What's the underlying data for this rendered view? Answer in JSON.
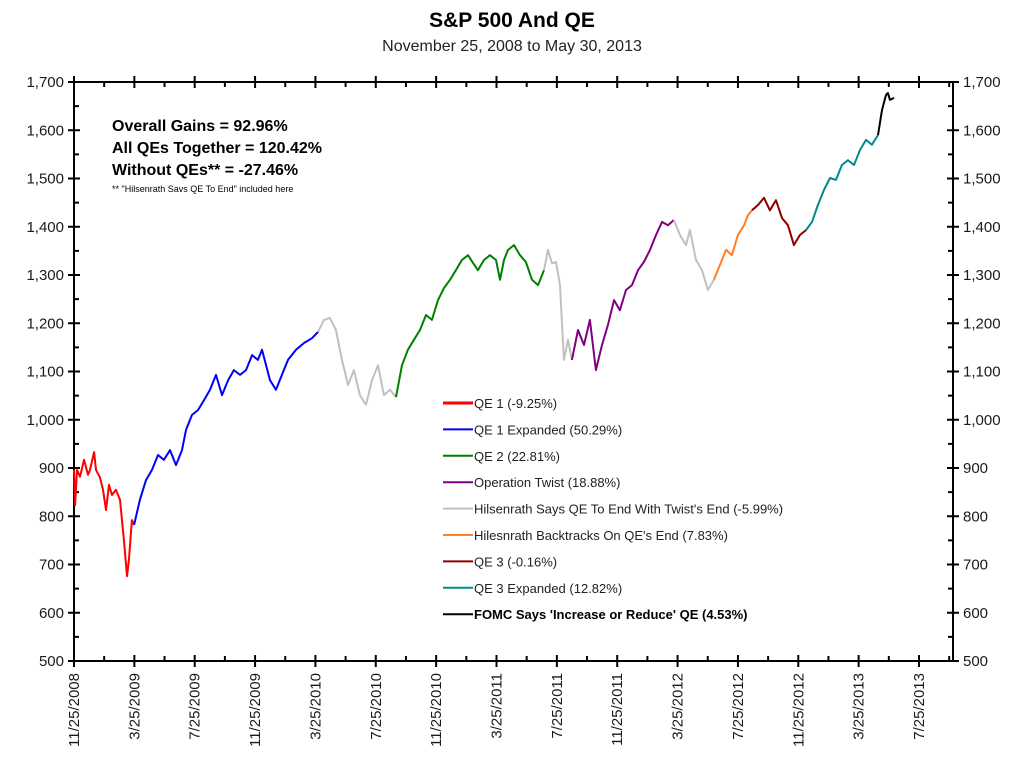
{
  "chart_data": {
    "type": "line",
    "title": "S&P 500 And QE",
    "subtitle": "November 25, 2008 to May 30, 2013",
    "xlabel": "",
    "ylabel": "",
    "x_units": "months since 11/25/2008",
    "xlim": [
      0,
      58.2
    ],
    "ylim": [
      500,
      1700
    ],
    "grid": false,
    "y_ticks": [
      500,
      600,
      700,
      800,
      900,
      1000,
      1100,
      1200,
      1300,
      1400,
      1500,
      1600,
      1700
    ],
    "y_tick_labels": [
      "500",
      "600",
      "700",
      "800",
      "900",
      "1,000",
      "1,100",
      "1,200",
      "1,300",
      "1,400",
      "1,500",
      "1,600",
      "1,700"
    ],
    "x_ticks": [
      0,
      4,
      8,
      12,
      16,
      20,
      24,
      28,
      32,
      36,
      40,
      44,
      48,
      52,
      56
    ],
    "x_tick_labels": [
      "11/25/2008",
      "3/25/2009",
      "7/25/2009",
      "11/25/2009",
      "3/25/2010",
      "7/25/2010",
      "11/25/2010",
      "3/25/2011",
      "7/25/2011",
      "11/25/2011",
      "3/25/2012",
      "7/25/2012",
      "11/25/2012",
      "3/25/2013",
      "7/25/2013"
    ],
    "annotations": [
      {
        "text": "Overall Gains = 92.96%",
        "style": "bold"
      },
      {
        "text": "All QEs Together = 120.42%",
        "style": "bold"
      },
      {
        "text": "Without QEs** = -27.46%",
        "style": "bold"
      },
      {
        "text": "** \"Hilsenrath Savs QE To End\" included here",
        "style": "footnote"
      }
    ],
    "legend_position": "center-bottom",
    "series": [
      {
        "name": "QE 1 (-9.25%)",
        "color": "#ff0000",
        "legend_bold": false,
        "in_legend": true,
        "points": [
          [
            0,
            896
          ],
          [
            0.07,
            823
          ],
          [
            0.2,
            896
          ],
          [
            0.4,
            882
          ],
          [
            0.66,
            917
          ],
          [
            0.93,
            886
          ],
          [
            1.06,
            896
          ],
          [
            1.33,
            933
          ],
          [
            1.46,
            896
          ],
          [
            1.72,
            880
          ],
          [
            1.92,
            855
          ],
          [
            2.12,
            813
          ],
          [
            2.32,
            865
          ],
          [
            2.52,
            844
          ],
          [
            2.78,
            855
          ],
          [
            3.05,
            834
          ],
          [
            3.31,
            751
          ],
          [
            3.51,
            676
          ],
          [
            3.64,
            709
          ],
          [
            3.84,
            792
          ],
          [
            3.98,
            782
          ]
        ]
      },
      {
        "name": "QE 1 Expanded (50.29%)",
        "color": "#0000ff",
        "legend_bold": false,
        "in_legend": true,
        "points": [
          [
            3.98,
            782
          ],
          [
            4.37,
            834
          ],
          [
            4.77,
            875
          ],
          [
            5.17,
            896
          ],
          [
            5.57,
            927
          ],
          [
            5.96,
            917
          ],
          [
            6.36,
            937
          ],
          [
            6.76,
            906
          ],
          [
            7.16,
            937
          ],
          [
            7.42,
            979
          ],
          [
            7.82,
            1010
          ],
          [
            8.22,
            1020
          ],
          [
            8.62,
            1041
          ],
          [
            9.01,
            1062
          ],
          [
            9.41,
            1093
          ],
          [
            9.81,
            1051
          ],
          [
            10.21,
            1082
          ],
          [
            10.6,
            1103
          ],
          [
            11.0,
            1093
          ],
          [
            11.4,
            1103
          ],
          [
            11.8,
            1134
          ],
          [
            12.19,
            1124
          ],
          [
            12.46,
            1145
          ],
          [
            12.99,
            1082
          ],
          [
            13.39,
            1062
          ],
          [
            13.78,
            1093
          ],
          [
            14.18,
            1124
          ],
          [
            14.71,
            1145
          ],
          [
            15.24,
            1159
          ],
          [
            15.77,
            1169
          ],
          [
            16.17,
            1182
          ]
        ]
      },
      {
        "name": "Hilsenrath Says QE To End With Twist's End (-5.99%)",
        "color": "#c0c0c0",
        "legend_bold": false,
        "in_legend": true,
        "points": [
          [
            16.17,
            1182
          ],
          [
            16.57,
            1207
          ],
          [
            16.96,
            1211
          ],
          [
            17.36,
            1186
          ],
          [
            17.76,
            1124
          ],
          [
            18.16,
            1072
          ],
          [
            18.55,
            1103
          ],
          [
            18.95,
            1051
          ],
          [
            19.35,
            1031
          ],
          [
            19.75,
            1082
          ],
          [
            20.15,
            1113
          ],
          [
            20.54,
            1051
          ],
          [
            20.94,
            1062
          ],
          [
            21.34,
            1047
          ]
        ]
      },
      {
        "name": "QE 2 (22.81%)",
        "color": "#008000",
        "legend_bold": false,
        "in_legend": true,
        "points": [
          [
            21.34,
            1047
          ],
          [
            21.74,
            1113
          ],
          [
            22.13,
            1145
          ],
          [
            22.53,
            1166
          ],
          [
            22.93,
            1186
          ],
          [
            23.33,
            1217
          ],
          [
            23.72,
            1207
          ],
          [
            24.12,
            1248
          ],
          [
            24.52,
            1273
          ],
          [
            24.92,
            1290
          ],
          [
            25.31,
            1310
          ],
          [
            25.71,
            1331
          ],
          [
            26.11,
            1341
          ],
          [
            26.51,
            1322
          ],
          [
            26.77,
            1310
          ],
          [
            27.17,
            1331
          ],
          [
            27.57,
            1341
          ],
          [
            27.97,
            1331
          ],
          [
            28.23,
            1290
          ],
          [
            28.5,
            1331
          ],
          [
            28.76,
            1352
          ],
          [
            29.16,
            1362
          ],
          [
            29.56,
            1341
          ],
          [
            29.95,
            1327
          ],
          [
            30.35,
            1290
          ],
          [
            30.75,
            1279
          ],
          [
            31.15,
            1310
          ]
        ]
      },
      {
        "name": "Hilsenrath Says QE To End With Twist's End (-5.99%)",
        "color": "#c0c0c0",
        "legend_bold": false,
        "in_legend": false,
        "points": [
          [
            31.15,
            1310
          ],
          [
            31.41,
            1352
          ],
          [
            31.68,
            1324
          ],
          [
            31.94,
            1327
          ],
          [
            32.21,
            1279
          ],
          [
            32.47,
            1124
          ],
          [
            32.74,
            1166
          ],
          [
            33.0,
            1124
          ]
        ]
      },
      {
        "name": "Operation Twist (18.88%)",
        "color": "#800080",
        "legend_bold": false,
        "in_legend": true,
        "points": [
          [
            33.0,
            1124
          ],
          [
            33.4,
            1186
          ],
          [
            33.8,
            1155
          ],
          [
            34.19,
            1207
          ],
          [
            34.59,
            1103
          ],
          [
            34.99,
            1155
          ],
          [
            35.39,
            1197
          ],
          [
            35.79,
            1248
          ],
          [
            36.18,
            1227
          ],
          [
            36.58,
            1269
          ],
          [
            36.98,
            1279
          ],
          [
            37.38,
            1310
          ],
          [
            37.77,
            1327
          ],
          [
            38.17,
            1352
          ],
          [
            38.57,
            1383
          ],
          [
            38.97,
            1410
          ],
          [
            39.36,
            1403
          ],
          [
            39.76,
            1414
          ]
        ]
      },
      {
        "name": "Hilsenrath Says QE To End With Twist's End (-5.99%)",
        "color": "#c0c0c0",
        "legend_bold": false,
        "in_legend": false,
        "points": [
          [
            39.76,
            1414
          ],
          [
            40.16,
            1383
          ],
          [
            40.56,
            1362
          ],
          [
            40.82,
            1393
          ],
          [
            41.22,
            1331
          ],
          [
            41.62,
            1310
          ],
          [
            42.01,
            1269
          ],
          [
            42.41,
            1290
          ]
        ]
      },
      {
        "name": "Hilesnrath Backtracks On QE's End (7.83%)",
        "color": "#ff7f27",
        "legend_bold": false,
        "in_legend": true,
        "points": [
          [
            42.41,
            1290
          ],
          [
            42.81,
            1321
          ],
          [
            43.21,
            1352
          ],
          [
            43.6,
            1341
          ],
          [
            44.0,
            1383
          ],
          [
            44.4,
            1403
          ],
          [
            44.67,
            1424
          ],
          [
            44.93,
            1434
          ]
        ]
      },
      {
        "name": "QE 3 (-0.16%)",
        "color": "#8b0000",
        "legend_bold": false,
        "in_legend": true,
        "points": [
          [
            44.93,
            1434
          ],
          [
            45.33,
            1445
          ],
          [
            45.73,
            1460
          ],
          [
            46.12,
            1434
          ],
          [
            46.52,
            1455
          ],
          [
            46.92,
            1418
          ],
          [
            47.32,
            1403
          ],
          [
            47.71,
            1362
          ],
          [
            48.11,
            1383
          ],
          [
            48.51,
            1393
          ]
        ]
      },
      {
        "name": "QE 3 Expanded (12.82%)",
        "color": "#008b8b",
        "legend_bold": false,
        "in_legend": true,
        "points": [
          [
            48.51,
            1393
          ],
          [
            48.91,
            1410
          ],
          [
            49.3,
            1445
          ],
          [
            49.7,
            1476
          ],
          [
            50.1,
            1501
          ],
          [
            50.5,
            1497
          ],
          [
            50.89,
            1528
          ],
          [
            51.29,
            1538
          ],
          [
            51.69,
            1528
          ],
          [
            52.09,
            1559
          ],
          [
            52.49,
            1580
          ],
          [
            52.88,
            1570
          ],
          [
            53.28,
            1590
          ]
        ]
      },
      {
        "name": "FOMC Says 'Increase or Reduce' QE (4.53%)",
        "color": "#000000",
        "legend_bold": true,
        "in_legend": true,
        "points": [
          [
            53.28,
            1590
          ],
          [
            53.55,
            1642
          ],
          [
            53.81,
            1673
          ],
          [
            53.94,
            1677
          ],
          [
            54.08,
            1663
          ],
          [
            54.34,
            1667
          ]
        ]
      }
    ],
    "legend": [
      {
        "label": "QE 1 (-9.25%)",
        "color": "#ff0000",
        "bold": false
      },
      {
        "label": "QE 1 Expanded (50.29%)",
        "color": "#0000ff",
        "bold": false
      },
      {
        "label": "QE 2 (22.81%)",
        "color": "#008000",
        "bold": false
      },
      {
        "label": "Operation Twist (18.88%)",
        "color": "#800080",
        "bold": false
      },
      {
        "label": "Hilsenrath Says QE To End With Twist's End (-5.99%)",
        "color": "#c0c0c0",
        "bold": false
      },
      {
        "label": "Hilesnrath Backtracks On QE's End (7.83%)",
        "color": "#ff7f27",
        "bold": false
      },
      {
        "label": "QE 3 (-0.16%)",
        "color": "#8b0000",
        "bold": false
      },
      {
        "label": "QE 3 Expanded (12.82%)",
        "color": "#008b8b",
        "bold": false
      },
      {
        "label": "FOMC Says 'Increase or Reduce' QE (4.53%)",
        "color": "#000000",
        "bold": true
      }
    ]
  }
}
